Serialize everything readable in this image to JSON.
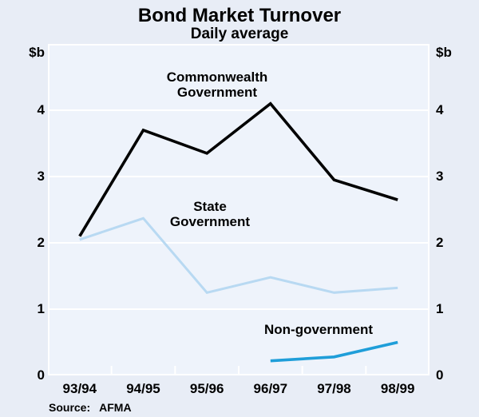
{
  "title": "Bond Market Turnover",
  "subtitle": "Daily average",
  "axis_unit_left": "$b",
  "axis_unit_right": "$b",
  "source_label": "Source:",
  "source_value": "AFMA",
  "colors": {
    "page_background": "#e8edf6",
    "plot_background": "#eef3fb",
    "grid": "#ffffff",
    "text": "#000000"
  },
  "chart_data": {
    "type": "line",
    "categories": [
      "93/94",
      "94/95",
      "95/96",
      "96/97",
      "97/98",
      "98/99"
    ],
    "series": [
      {
        "name": "Commonwealth Government",
        "color": "#000000",
        "values": [
          2.1,
          3.7,
          3.35,
          4.1,
          2.95,
          2.65
        ]
      },
      {
        "name": "State Government",
        "color": "#b8d9f2",
        "values": [
          2.05,
          2.37,
          1.25,
          1.48,
          1.25,
          1.32
        ]
      },
      {
        "name": "Non-government",
        "color": "#1f9ed9",
        "values": [
          null,
          null,
          null,
          0.22,
          0.28,
          0.5
        ]
      }
    ],
    "title": "Bond Market Turnover",
    "subtitle": "Daily average",
    "xlabel": "",
    "ylabel": "$b",
    "ylim": [
      0,
      5
    ],
    "yticks": [
      0,
      1,
      2,
      3,
      4
    ],
    "grid": true,
    "legend_position": "inline-annotations",
    "annotations": [
      {
        "lines": [
          "Commonwealth",
          "Government"
        ],
        "cx": 272,
        "top": 87
      },
      {
        "lines": [
          "State",
          "Government"
        ],
        "cx": 263,
        "top": 249
      },
      {
        "lines": [
          "Non-government"
        ],
        "cx": 399,
        "top": 403
      }
    ]
  }
}
